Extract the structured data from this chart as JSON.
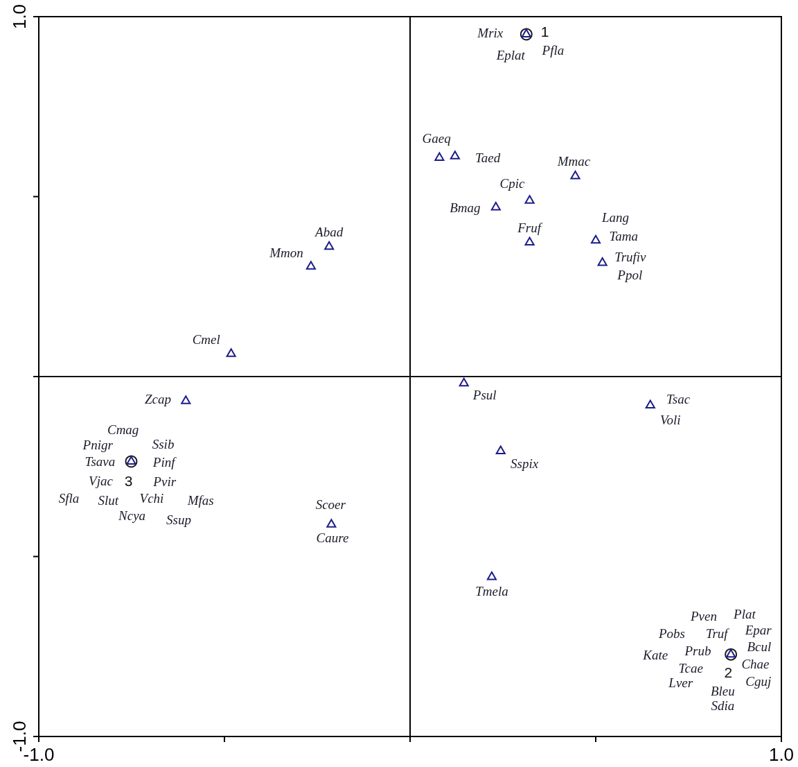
{
  "chart_data": {
    "type": "scatter",
    "series": [
      {
        "type": "scatter",
        "marker": "triangle",
        "color": "#1c1c8a",
        "x": [
          0.313,
          0.079,
          0.121,
          0.445,
          0.322,
          0.231,
          0.322,
          0.5,
          0.518,
          -0.218,
          -0.267,
          -0.482,
          0.145,
          0.647,
          -0.604,
          0.244,
          -0.751,
          -0.212,
          0.22,
          0.864
        ],
        "values": [
          0.951,
          0.608,
          0.612,
          0.557,
          0.489,
          0.47,
          0.373,
          0.378,
          0.316,
          0.361,
          0.306,
          0.063,
          -0.019,
          -0.08,
          -0.068,
          -0.207,
          -0.236,
          -0.411,
          -0.557,
          -0.772
        ]
      },
      {
        "type": "scatter",
        "marker": "circle",
        "color": "#1a1a1a",
        "x": [
          0.313,
          0.864,
          -0.751
        ],
        "values": [
          0.951,
          -0.772,
          -0.236
        ]
      }
    ],
    "xlim": [
      -1,
      1
    ],
    "ylim": [
      -1,
      1
    ],
    "xticks": [
      {
        "value": -1,
        "label": "-1.0"
      },
      {
        "value": -0.5,
        "label": null
      },
      {
        "value": 0,
        "label": null
      },
      {
        "value": 0.5,
        "label": null
      },
      {
        "value": 1,
        "label": "1.0"
      }
    ],
    "yticks": [
      {
        "value": -1,
        "label": "-1.0"
      },
      {
        "value": -0.5,
        "label": null
      },
      {
        "value": 0,
        "label": null
      },
      {
        "value": 0.5,
        "label": null
      },
      {
        "value": 1,
        "label": "1.0"
      }
    ],
    "grid": false,
    "legend": false,
    "ref_lines": [
      {
        "axis": "x",
        "value": 0,
        "label": null,
        "color": "#000000"
      },
      {
        "axis": "y",
        "value": 0,
        "label": null,
        "color": "#111111"
      }
    ],
    "annotations": [
      "Mrix",
      "1",
      "Eplat",
      "Pfla",
      "Gaeq",
      "Taed",
      "Mmac",
      "Cpic",
      "Bmag",
      "Fruf",
      "Lang",
      "Tama",
      "Trufiv",
      "Ppol",
      "Abad",
      "Mmon",
      "Cmel",
      "Psul",
      "Tsac",
      "Voli",
      "Zcap",
      "Cmag",
      "Pnigr",
      "Ssib",
      "Tsava",
      "Pinf",
      "Vjac",
      "3",
      "Pvir",
      "Sfla",
      "Slut",
      "Vchi",
      "Mfas",
      "Ncya",
      "Ssup",
      "Sspix",
      "Scoer",
      "Caure",
      "Tmela",
      "Pven",
      "Plat",
      "Pobs",
      "Truf",
      "Epar",
      "Kate",
      "Prub",
      "Bcul",
      "Tcae",
      "2",
      "Chae",
      "Lver",
      "Bleu",
      "Cguj",
      "Sdia"
    ]
  }
}
